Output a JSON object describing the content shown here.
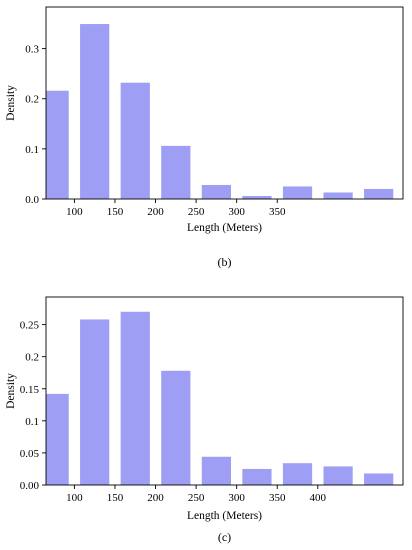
{
  "chart_data": [
    {
      "type": "bar",
      "panel_label": "(b)",
      "xlabel": "Length (Meters)",
      "ylabel": "Density",
      "bin_centers": [
        75,
        125,
        175,
        225,
        275,
        325,
        375,
        425,
        475
      ],
      "values": [
        0.216,
        0.349,
        0.232,
        0.106,
        0.028,
        0.006,
        0.025,
        0.013,
        0.02
      ],
      "xlim": [
        65,
        505
      ],
      "ylim": [
        0,
        0.383
      ],
      "x_ticks": [
        100,
        150,
        200,
        250,
        300,
        350
      ],
      "x_tick_labels": [
        "100",
        "150",
        "200",
        "250",
        "300",
        "350"
      ],
      "y_ticks": [
        0,
        0.1,
        0.2,
        0.3
      ],
      "y_tick_labels": [
        "0.0",
        "0.1",
        "0.2",
        "0.3"
      ],
      "grid": false
    },
    {
      "type": "bar",
      "panel_label": "(c)",
      "xlabel": "Length (Meters)",
      "ylabel": "Density",
      "bin_centers": [
        75,
        125,
        175,
        225,
        275,
        325,
        375,
        425,
        475
      ],
      "values": [
        0.142,
        0.258,
        0.27,
        0.178,
        0.044,
        0.025,
        0.034,
        0.029,
        0.018
      ],
      "xlim": [
        65,
        505
      ],
      "ylim": [
        0,
        0.293
      ],
      "x_ticks": [
        100,
        150,
        200,
        250,
        300,
        350,
        400
      ],
      "x_tick_labels": [
        "100",
        "150",
        "200",
        "250",
        "300",
        "350",
        "400"
      ],
      "y_ticks": [
        0,
        0.05,
        0.1,
        0.15,
        0.2,
        0.25
      ],
      "y_tick_labels": [
        "0.00",
        "0.05",
        "0.1",
        "0.15",
        "0.2",
        "0.25"
      ],
      "grid": false
    }
  ]
}
